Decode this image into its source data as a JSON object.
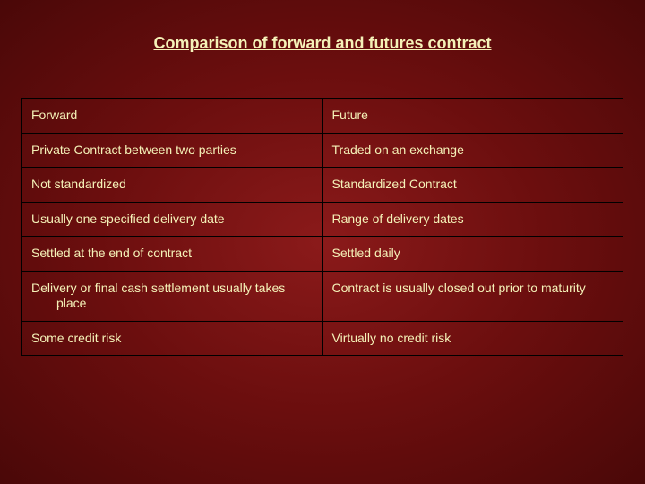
{
  "title": {
    "text": "Comparison of forward and futures contract",
    "color": "#f5f2b8",
    "fontsize": 18
  },
  "table": {
    "text_color": "#f5f2b8",
    "fontsize": 14,
    "border_color": "#000000",
    "col_widths": [
      "50%",
      "50%"
    ],
    "rows": [
      {
        "left": "Forward",
        "right": "Future"
      },
      {
        "left": "Private Contract between two parties",
        "right": "Traded on an exchange"
      },
      {
        "left": "Not standardized",
        "right": "Standardized Contract"
      },
      {
        "left": "Usually one specified delivery date",
        "right": "Range of delivery dates"
      },
      {
        "left": "Settled at the end of contract",
        "right": "Settled daily"
      },
      {
        "left": "Delivery or final cash settlement usually takes place",
        "right": "Contract is usually closed out prior to maturity",
        "wrap_indent": true
      },
      {
        "left": "Some credit risk",
        "right": "Virtually no credit risk"
      }
    ]
  },
  "background": {
    "center": "#8b1a1a",
    "mid": "#6b0e0e",
    "edge": "#4a0808"
  }
}
